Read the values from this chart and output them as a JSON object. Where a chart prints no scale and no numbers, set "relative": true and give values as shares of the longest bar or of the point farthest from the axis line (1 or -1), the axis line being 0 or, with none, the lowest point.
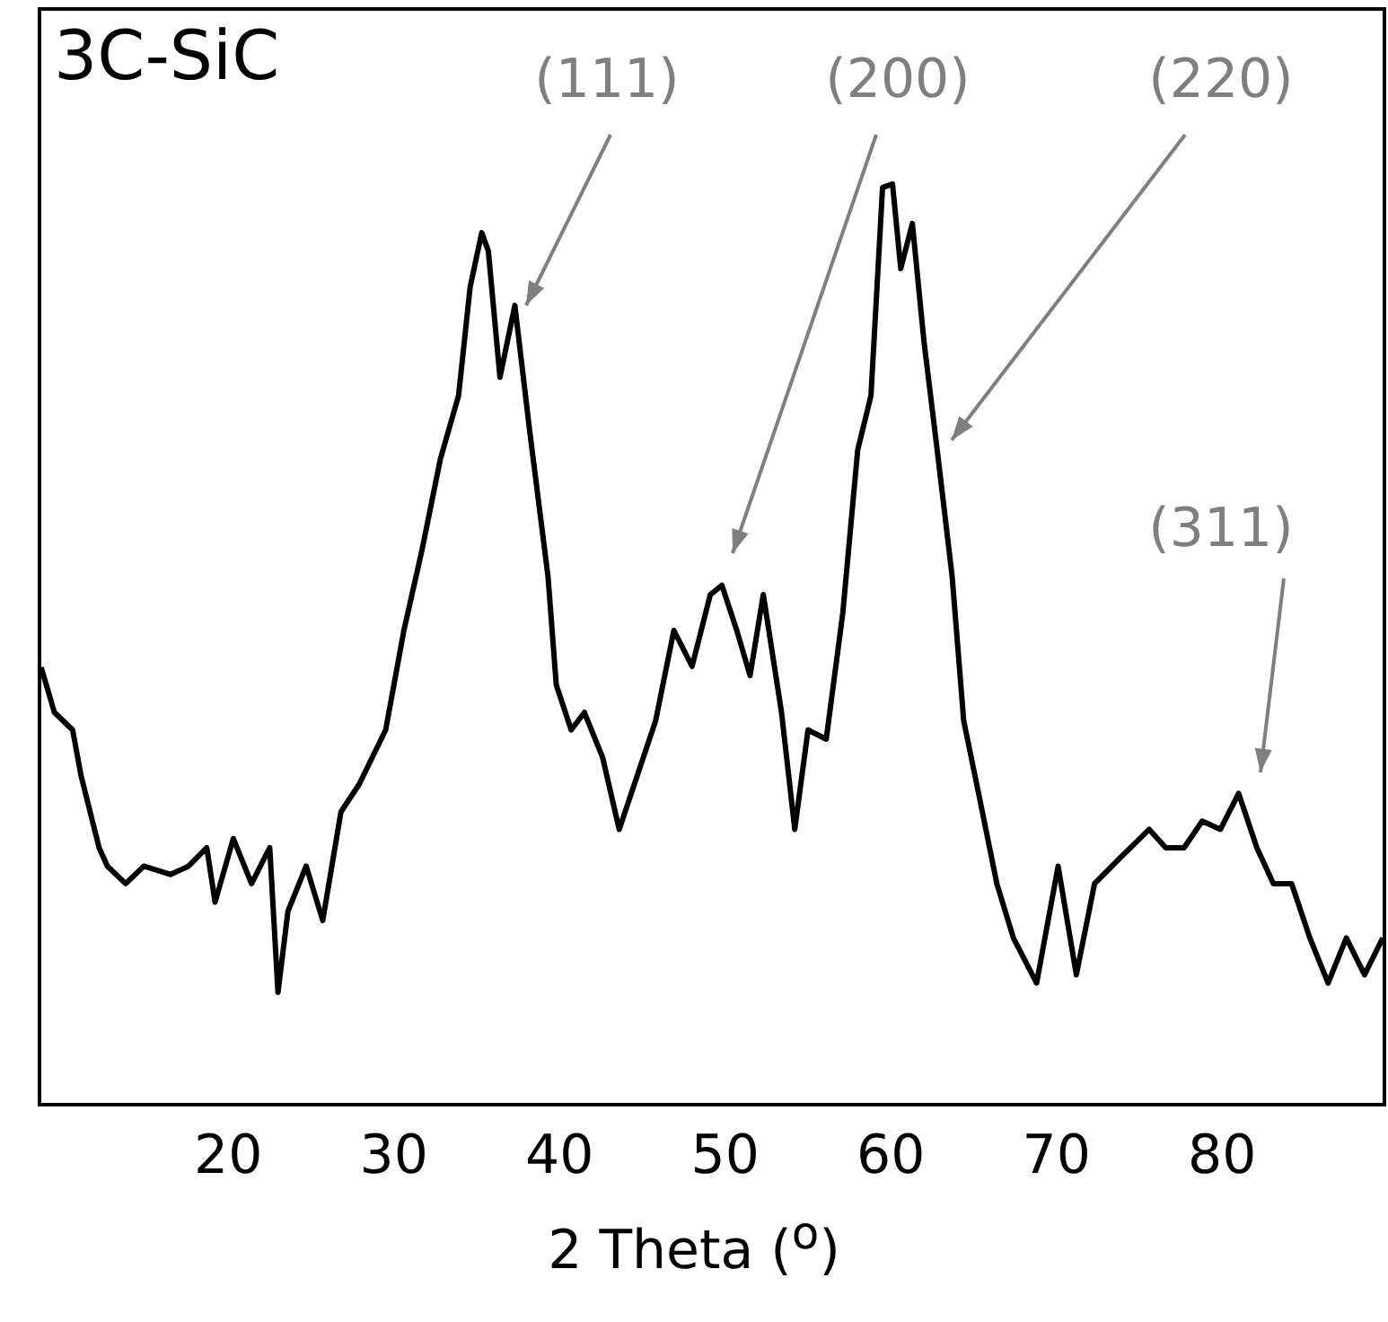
{
  "chart_data": {
    "type": "line",
    "title": "3C-SiC",
    "xlabel": "2 Theta ($^{o}$)",
    "relative": true,
    "xlim": [
      8.6,
      89.8
    ],
    "xticks": [
      20,
      30,
      40,
      50,
      60,
      70,
      80
    ],
    "grid": false,
    "legend": false,
    "marker": "none",
    "line_style": "solid",
    "x": [
      8.7,
      9.5,
      10.6,
      11.1,
      12.2,
      12.7,
      13.8,
      14.9,
      16.5,
      17.6,
      18.7,
      19.2,
      20.3,
      21.4,
      22.5,
      23.0,
      23.6,
      24.7,
      25.7,
      26.8,
      27.9,
      29.5,
      30.6,
      31.7,
      32.8,
      33.9,
      34.6,
      35.3,
      35.7,
      36.4,
      37.3,
      38.2,
      39.3,
      39.8,
      40.7,
      41.5,
      42.6,
      43.6,
      44.7,
      45.8,
      46.9,
      48.0,
      49.1,
      49.8,
      50.7,
      51.5,
      52.3,
      53.4,
      54.2,
      55.0,
      56.1,
      57.1,
      58.0,
      58.8,
      59.5,
      60.1,
      60.6,
      61.3,
      62.0,
      62.8,
      63.7,
      64.4,
      65.3,
      66.4,
      67.4,
      68.8,
      70.1,
      71.2,
      72.3,
      73.9,
      75.6,
      76.6,
      77.7,
      78.8,
      79.9,
      81.0,
      82.1,
      83.1,
      84.2,
      85.3,
      86.4,
      87.5,
      88.6,
      89.7
    ],
    "series": [
      {
        "color": "#000000",
        "values": [
          0.475,
          0.426,
          0.407,
          0.358,
          0.279,
          0.259,
          0.24,
          0.259,
          0.25,
          0.259,
          0.279,
          0.22,
          0.289,
          0.24,
          0.279,
          0.122,
          0.21,
          0.259,
          0.2,
          0.318,
          0.348,
          0.407,
          0.515,
          0.603,
          0.701,
          0.77,
          0.888,
          0.947,
          0.927,
          0.79,
          0.868,
          0.731,
          0.574,
          0.456,
          0.407,
          0.426,
          0.377,
          0.299,
          0.358,
          0.417,
          0.515,
          0.476,
          0.554,
          0.564,
          0.515,
          0.466,
          0.554,
          0.426,
          0.299,
          0.407,
          0.397,
          0.534,
          0.711,
          0.77,
          0.996,
          1,
          0.908,
          0.957,
          0.829,
          0.711,
          0.574,
          0.417,
          0.338,
          0.24,
          0.181,
          0.132,
          0.259,
          0.141,
          0.24,
          0.269,
          0.299,
          0.279,
          0.279,
          0.308,
          0.299,
          0.338,
          0.279,
          0.24,
          0.24,
          0.181,
          0.132,
          0.181,
          0.141,
          0.181
        ]
      }
    ],
    "annotations": [
      "(111)",
      "(200)",
      "(220)",
      "(311)"
    ]
  }
}
